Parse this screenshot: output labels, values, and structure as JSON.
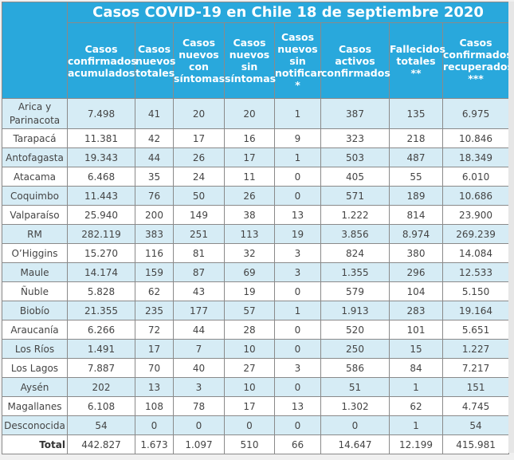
{
  "title": "Casos COVID-19 en Chile 18 de septiembre 2020",
  "columns": [
    "Casos confirmados acumulados",
    "Casos nuevos totales",
    "Casos nuevos con síntomas",
    "Casos nuevos sin síntomas",
    "Casos nuevos sin notificar *",
    "Casos activos confirmados",
    "Fallecidos totales **",
    "Casos confirmados recuperados ***"
  ],
  "rows": [
    {
      "region": "Arica y Parinacota",
      "values": [
        "7.498",
        "41",
        "20",
        "20",
        "1",
        "387",
        "135",
        "6.975"
      ]
    },
    {
      "region": "Tarapacá",
      "values": [
        "11.381",
        "42",
        "17",
        "16",
        "9",
        "323",
        "218",
        "10.846"
      ]
    },
    {
      "region": "Antofagasta",
      "values": [
        "19.343",
        "44",
        "26",
        "17",
        "1",
        "503",
        "487",
        "18.349"
      ]
    },
    {
      "region": "Atacama",
      "values": [
        "6.468",
        "35",
        "24",
        "11",
        "0",
        "405",
        "55",
        "6.010"
      ]
    },
    {
      "region": "Coquimbo",
      "values": [
        "11.443",
        "76",
        "50",
        "26",
        "0",
        "571",
        "189",
        "10.686"
      ]
    },
    {
      "region": "Valparaíso",
      "values": [
        "25.940",
        "200",
        "149",
        "38",
        "13",
        "1.222",
        "814",
        "23.900"
      ]
    },
    {
      "region": "RM",
      "values": [
        "282.119",
        "383",
        "251",
        "113",
        "19",
        "3.856",
        "8.974",
        "269.239"
      ]
    },
    {
      "region": "O’Higgins",
      "values": [
        "15.270",
        "116",
        "81",
        "32",
        "3",
        "824",
        "380",
        "14.084"
      ]
    },
    {
      "region": "Maule",
      "values": [
        "14.174",
        "159",
        "87",
        "69",
        "3",
        "1.355",
        "296",
        "12.533"
      ]
    },
    {
      "region": "Ñuble",
      "values": [
        "5.828",
        "62",
        "43",
        "19",
        "0",
        "579",
        "104",
        "5.150"
      ]
    },
    {
      "region": "Biobío",
      "values": [
        "21.355",
        "235",
        "177",
        "57",
        "1",
        "1.913",
        "283",
        "19.164"
      ]
    },
    {
      "region": "Araucanía",
      "values": [
        "6.266",
        "72",
        "44",
        "28",
        "0",
        "520",
        "101",
        "5.651"
      ]
    },
    {
      "region": "Los Ríos",
      "values": [
        "1.491",
        "17",
        "7",
        "10",
        "0",
        "250",
        "15",
        "1.227"
      ]
    },
    {
      "region": "Los Lagos",
      "values": [
        "7.887",
        "70",
        "40",
        "27",
        "3",
        "586",
        "84",
        "7.217"
      ]
    },
    {
      "region": "Aysén",
      "values": [
        "202",
        "13",
        "3",
        "10",
        "0",
        "51",
        "1",
        "151"
      ]
    },
    {
      "region": "Magallanes",
      "values": [
        "6.108",
        "108",
        "78",
        "17",
        "13",
        "1.302",
        "62",
        "4.745"
      ]
    },
    {
      "region": "Desconocida",
      "values": [
        "54",
        "0",
        "0",
        "0",
        "0",
        "0",
        "1",
        "54"
      ]
    }
  ],
  "total": {
    "label": "Total",
    "values": [
      "442.827",
      "1.673",
      "1.097",
      "510",
      "66",
      "14.647",
      "12.199",
      "415.981"
    ]
  }
}
